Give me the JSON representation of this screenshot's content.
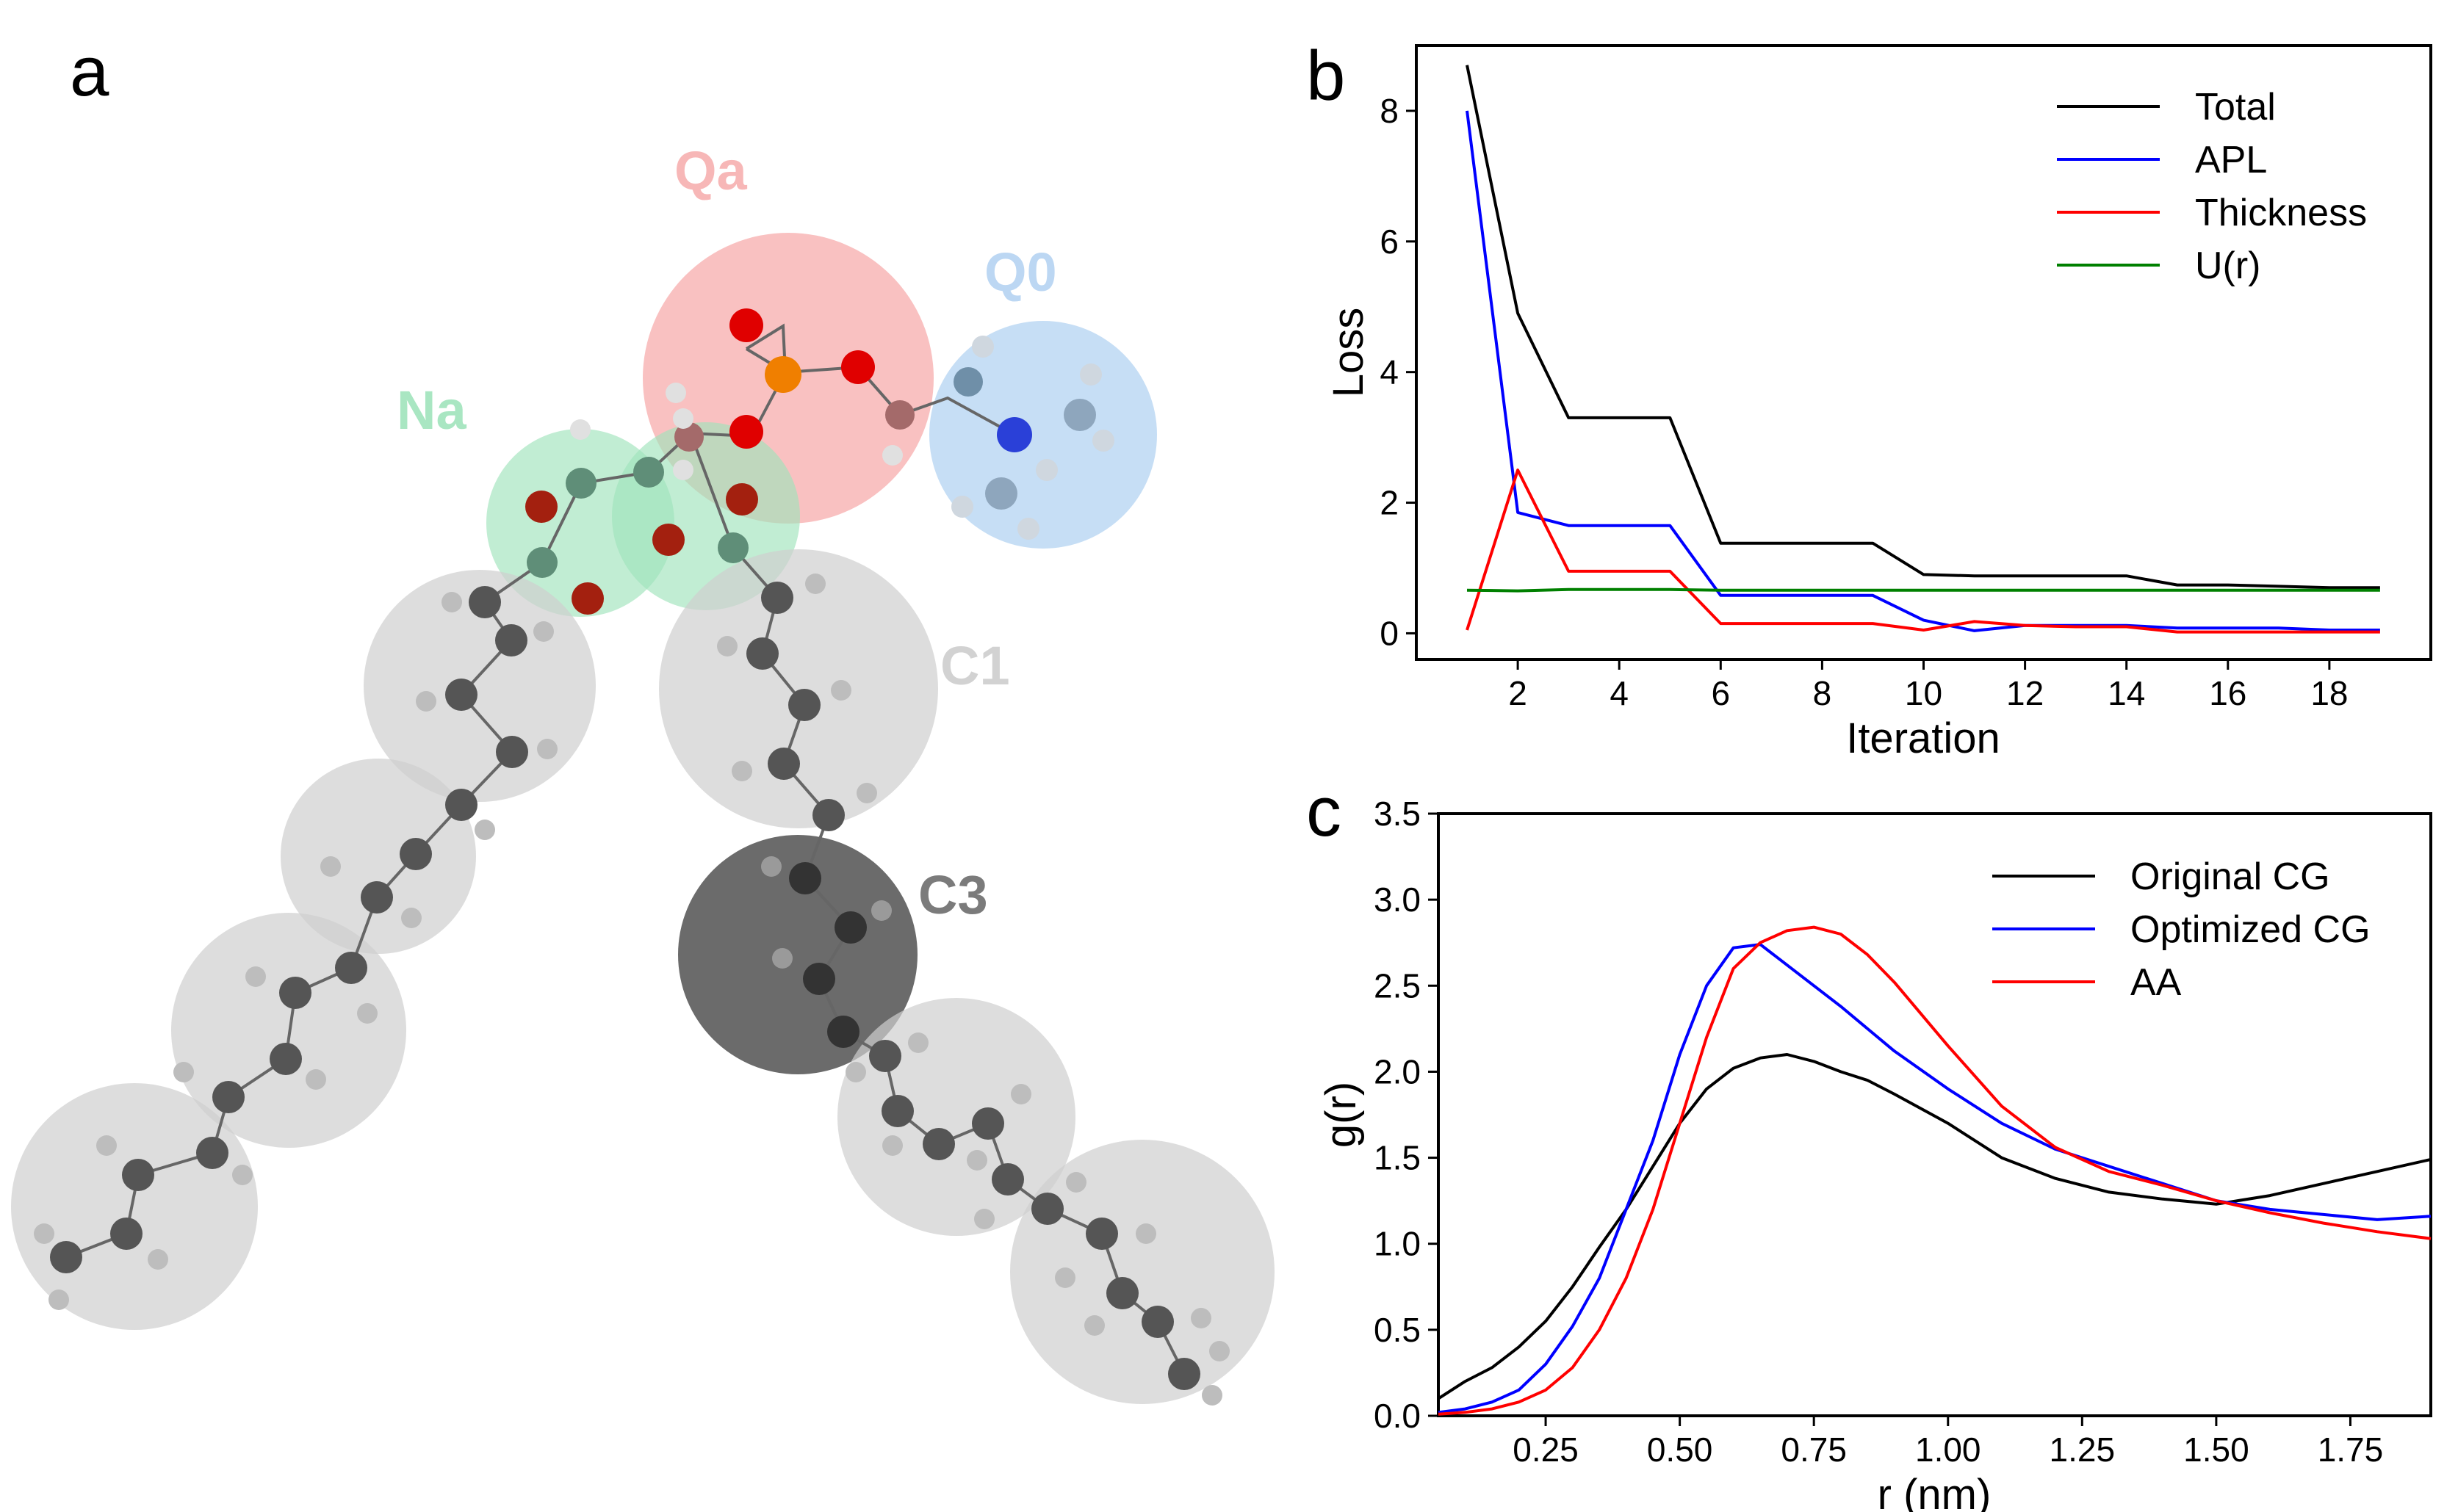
{
  "panels": {
    "a": "a",
    "b": "b",
    "c": "c"
  },
  "molecule": {
    "bead_labels": [
      {
        "name": "Qa",
        "color": "#f7b7b7"
      },
      {
        "name": "Q0",
        "color": "#bcd7f3"
      },
      {
        "name": "Na",
        "color": "#a9e6c2"
      },
      {
        "name": "C1",
        "color": "#d2d2d2"
      },
      {
        "name": "C3",
        "color": "#7b7b7b"
      }
    ],
    "bead_colors": {
      "Qa": "#f7a6a6",
      "Q0": "#b3d3f2",
      "Na": "#9fe3bb",
      "C1": "#cfcfcf",
      "C3": "#3a3a3a"
    }
  },
  "chart_data": [
    {
      "id": "b",
      "type": "line",
      "xlabel": "Iteration",
      "ylabel": "Loss",
      "xlim": [
        0.0,
        20.0
      ],
      "ylim": [
        -0.4,
        9.0
      ],
      "xticks": [
        2,
        4,
        6,
        8,
        10,
        12,
        14,
        16,
        18
      ],
      "yticks": [
        0,
        2,
        4,
        6,
        8
      ],
      "legend_position": "top-right",
      "series": [
        {
          "name": "Total",
          "color": "#000000",
          "x": [
            1,
            2,
            3,
            4,
            5,
            6,
            7,
            8,
            9,
            10,
            11,
            12,
            13,
            14,
            15,
            16,
            17,
            18,
            19
          ],
          "y": [
            8.7,
            4.9,
            3.3,
            3.3,
            3.3,
            1.38,
            1.38,
            1.38,
            1.38,
            0.9,
            0.88,
            0.88,
            0.88,
            0.88,
            0.74,
            0.74,
            0.72,
            0.7,
            0.7
          ]
        },
        {
          "name": "APL",
          "color": "#0000ff",
          "x": [
            1,
            2,
            3,
            4,
            5,
            6,
            7,
            8,
            9,
            10,
            11,
            12,
            13,
            14,
            15,
            16,
            17,
            18,
            19
          ],
          "y": [
            8.0,
            1.85,
            1.65,
            1.65,
            1.65,
            0.58,
            0.58,
            0.58,
            0.58,
            0.2,
            0.04,
            0.12,
            0.12,
            0.12,
            0.08,
            0.08,
            0.08,
            0.05,
            0.05
          ]
        },
        {
          "name": "Thickness",
          "color": "#ff0000",
          "x": [
            1,
            2,
            3,
            4,
            5,
            6,
            7,
            8,
            9,
            10,
            11,
            12,
            13,
            14,
            15,
            16,
            17,
            18,
            19
          ],
          "y": [
            0.05,
            2.5,
            0.95,
            0.95,
            0.95,
            0.15,
            0.15,
            0.15,
            0.15,
            0.05,
            0.18,
            0.12,
            0.1,
            0.1,
            0.02,
            0.02,
            0.02,
            0.02,
            0.02
          ]
        },
        {
          "name": "U(r)",
          "color": "#008000",
          "x": [
            1,
            2,
            3,
            4,
            5,
            6,
            7,
            8,
            9,
            10,
            11,
            12,
            13,
            14,
            15,
            16,
            17,
            18,
            19
          ],
          "y": [
            0.66,
            0.65,
            0.67,
            0.67,
            0.67,
            0.66,
            0.66,
            0.66,
            0.66,
            0.66,
            0.66,
            0.66,
            0.66,
            0.66,
            0.66,
            0.66,
            0.66,
            0.66,
            0.66
          ]
        }
      ]
    },
    {
      "id": "c",
      "type": "line",
      "xlabel": "r (nm)",
      "ylabel": "g(r)",
      "xlim": [
        0.05,
        1.9
      ],
      "ylim": [
        0.0,
        3.5
      ],
      "xticks": [
        0.25,
        0.5,
        0.75,
        1.0,
        1.25,
        1.5,
        1.75
      ],
      "xtick_labels": [
        "0.25",
        "0.50",
        "0.75",
        "1.00",
        "1.25",
        "1.50",
        "1.75"
      ],
      "yticks": [
        0.0,
        0.5,
        1.0,
        1.5,
        2.0,
        2.5,
        3.0,
        3.5
      ],
      "ytick_labels": [
        "0.0",
        "0.5",
        "1.0",
        "1.5",
        "2.0",
        "2.5",
        "3.0",
        "3.5"
      ],
      "legend_position": "top-right",
      "series": [
        {
          "name": "Original CG",
          "color": "#000000",
          "x": [
            0.05,
            0.1,
            0.15,
            0.2,
            0.25,
            0.3,
            0.35,
            0.4,
            0.45,
            0.5,
            0.55,
            0.6,
            0.65,
            0.7,
            0.75,
            0.8,
            0.85,
            0.9,
            1.0,
            1.1,
            1.2,
            1.3,
            1.4,
            1.5,
            1.6,
            1.7,
            1.8,
            1.9
          ],
          "y": [
            0.1,
            0.2,
            0.28,
            0.4,
            0.55,
            0.75,
            0.98,
            1.2,
            1.45,
            1.7,
            1.9,
            2.02,
            2.08,
            2.1,
            2.06,
            2.0,
            1.95,
            1.87,
            1.7,
            1.5,
            1.38,
            1.3,
            1.26,
            1.23,
            1.28,
            1.35,
            1.42,
            1.49
          ]
        },
        {
          "name": "Optimized CG",
          "color": "#0000ff",
          "x": [
            0.05,
            0.1,
            0.15,
            0.2,
            0.25,
            0.3,
            0.35,
            0.4,
            0.45,
            0.5,
            0.55,
            0.6,
            0.65,
            0.7,
            0.75,
            0.8,
            0.85,
            0.9,
            1.0,
            1.1,
            1.2,
            1.3,
            1.4,
            1.5,
            1.6,
            1.7,
            1.8,
            1.9
          ],
          "y": [
            0.02,
            0.04,
            0.08,
            0.15,
            0.3,
            0.52,
            0.8,
            1.2,
            1.6,
            2.1,
            2.5,
            2.72,
            2.74,
            2.62,
            2.5,
            2.38,
            2.25,
            2.12,
            1.9,
            1.7,
            1.55,
            1.45,
            1.35,
            1.25,
            1.2,
            1.17,
            1.14,
            1.16
          ]
        },
        {
          "name": "AA",
          "color": "#ff0000",
          "x": [
            0.05,
            0.1,
            0.15,
            0.2,
            0.25,
            0.3,
            0.35,
            0.4,
            0.45,
            0.5,
            0.55,
            0.6,
            0.65,
            0.7,
            0.75,
            0.8,
            0.85,
            0.9,
            1.0,
            1.1,
            1.2,
            1.3,
            1.4,
            1.5,
            1.6,
            1.7,
            1.8,
            1.9
          ],
          "y": [
            0.01,
            0.02,
            0.04,
            0.08,
            0.15,
            0.28,
            0.5,
            0.8,
            1.2,
            1.7,
            2.2,
            2.6,
            2.75,
            2.82,
            2.84,
            2.8,
            2.68,
            2.52,
            2.15,
            1.8,
            1.56,
            1.42,
            1.34,
            1.25,
            1.18,
            1.12,
            1.07,
            1.03
          ]
        }
      ]
    }
  ]
}
